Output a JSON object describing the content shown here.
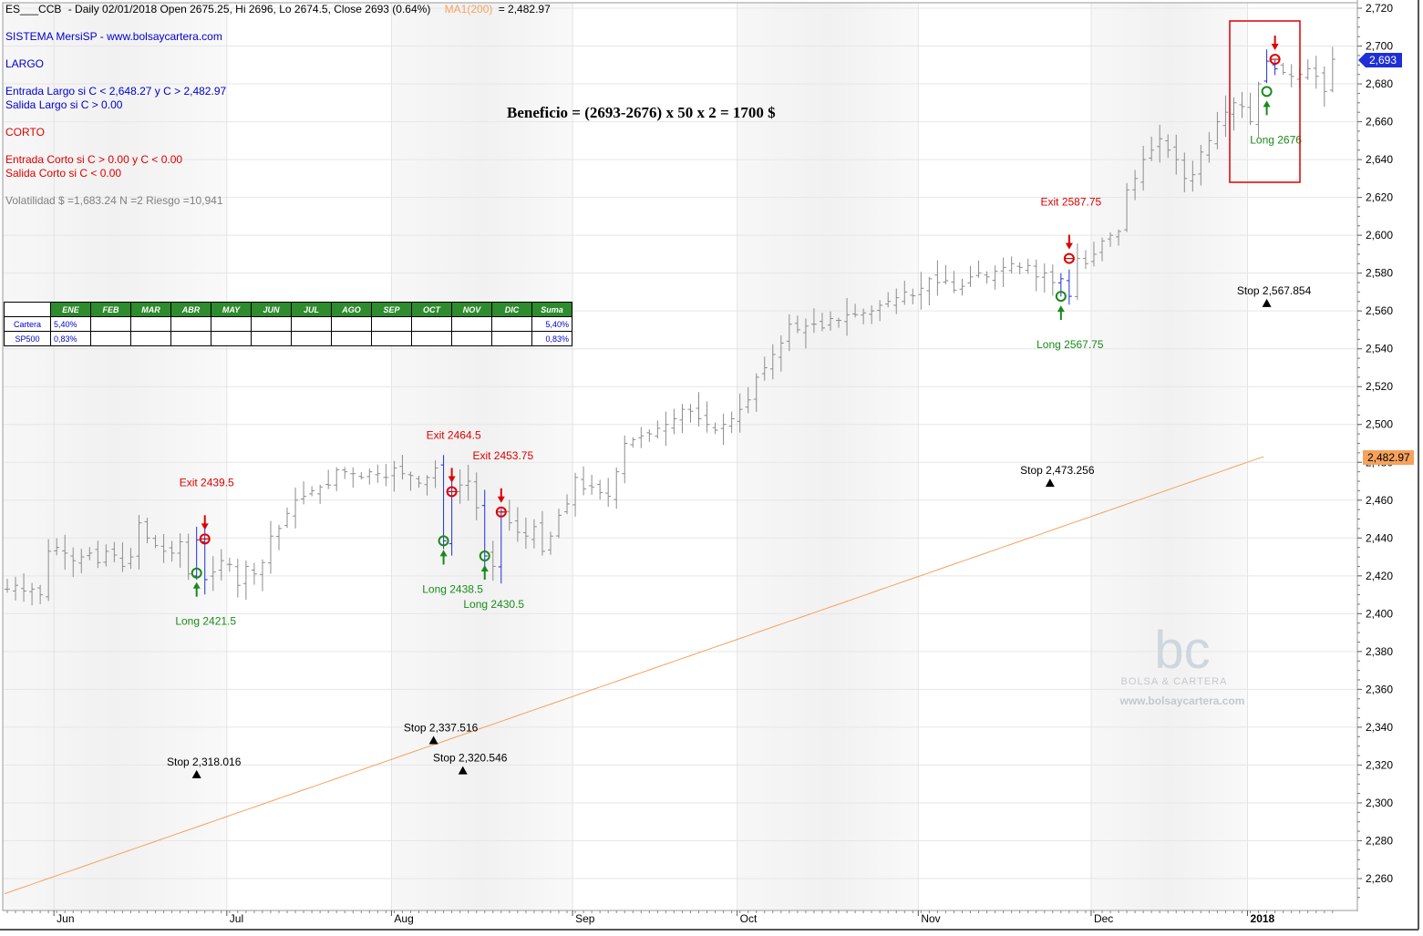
{
  "header": {
    "symbol": "ES___CCB",
    "info": "- Daily 02/01/2018  Open 2675.25,  Hi 2696,  Lo 2674.5,  Close 2693 (0.64%)",
    "ma_label": "MA1(200)",
    "ma_value": "= 2,482.97"
  },
  "system": {
    "name": "SISTEMA MersiSP  -  www.bolsaycartera.com",
    "largo": "LARGO",
    "entrada_largo": "Entrada Largo si C < 2,648.27  y  C > 2,482.97",
    "salida_largo": "Salida Largo si    C > 0.00",
    "corto": "CORTO",
    "entrada_corto": "Entrada Corto si  C > 0.00  y  C < 0.00",
    "salida_corto": "Salida Corto si    C < 0.00",
    "volatilidad": "Volatilidad $ =1,683.24     N =2     Riesgo =10,941"
  },
  "headline": "Beneficio = (2693-2676) x 50 x 2 = 1700 $",
  "table": {
    "headers": [
      "",
      "ENE",
      "FEB",
      "MAR",
      "ABR",
      "MAY",
      "JUN",
      "JUL",
      "AGO",
      "SEP",
      "OCT",
      "NOV",
      "DIC",
      "Suma"
    ],
    "rows": [
      {
        "label": "Cartera",
        "cells": [
          "5,40%",
          "",
          "",
          "",
          "",
          "",
          "",
          "",
          "",
          "",
          "",
          "",
          "5,40%"
        ]
      },
      {
        "label": "SP500",
        "cells": [
          "0,83%",
          "",
          "",
          "",
          "",
          "",
          "",
          "",
          "",
          "",
          "",
          "",
          "0,83%"
        ]
      }
    ]
  },
  "price_tags": {
    "last": "2,693",
    "ma": "2,482.97"
  },
  "watermark": {
    "logo": "bc",
    "name": "BOLSA & CARTERA",
    "url": "www.bolsaycartera.com"
  },
  "colors": {
    "bars": "#8c8c8c",
    "ma": "#f5a25d",
    "long": "#1a8a1a",
    "exit": "#dd0000",
    "info": "#0000cc",
    "last_tag": "#1f2fd6",
    "ma_tag": "#f5a25d",
    "highlight_box": "#dd0000"
  },
  "chart_data": {
    "type": "ohlc-bar",
    "y_range": [
      2245,
      2725
    ],
    "y_ticks": [
      "2,260",
      "2,280",
      "2,300",
      "2,320",
      "2,340",
      "2,360",
      "2,380",
      "2,400",
      "2,420",
      "2,440",
      "2,460",
      "2,480",
      "2,500",
      "2,520",
      "2,540",
      "2,560",
      "2,580",
      "2,600",
      "2,620",
      "2,640",
      "2,660",
      "2,680",
      "2,700",
      "2,720"
    ],
    "x_labels": [
      {
        "label": "Jun",
        "index": 6
      },
      {
        "label": "Jul",
        "index": 27
      },
      {
        "label": "Aug",
        "index": 47
      },
      {
        "label": "Sep",
        "index": 69
      },
      {
        "label": "Oct",
        "index": 89
      },
      {
        "label": "Nov",
        "index": 111
      },
      {
        "label": "Dec",
        "index": 132
      },
      {
        "label": "2018",
        "index": 151
      }
    ],
    "closes": [
      2413,
      2415,
      2412,
      2413,
      2410,
      2433,
      2435,
      2432,
      2428,
      2430,
      2432,
      2427,
      2433,
      2431,
      2425,
      2430,
      2448,
      2440,
      2436,
      2433,
      2432,
      2438,
      2421,
      2439,
      2418,
      2422,
      2428,
      2426,
      2415,
      2425,
      2421,
      2427,
      2441,
      2445,
      2453,
      2460,
      2462,
      2465,
      2467,
      2468,
      2476,
      2475,
      2474,
      2472,
      2475,
      2474,
      2472,
      2477,
      2474,
      2473,
      2469,
      2472,
      2477,
      2438.5,
      2464.5,
      2468,
      2470,
      2456,
      2430.5,
      2425,
      2453.75,
      2448,
      2443,
      2441,
      2446,
      2433,
      2441,
      2452,
      2458,
      2472,
      2466,
      2467,
      2464,
      2462,
      2475,
      2490,
      2492,
      2494,
      2495,
      2498,
      2500,
      2503,
      2508,
      2507,
      2503,
      2500,
      2497,
      2500,
      2503,
      2508,
      2513,
      2525,
      2530,
      2537,
      2543,
      2553,
      2550,
      2552,
      2553,
      2551,
      2556,
      2555,
      2558,
      2558,
      2559,
      2560,
      2563,
      2565,
      2567,
      2570,
      2568,
      2572,
      2577,
      2575,
      2576,
      2571,
      2573,
      2578,
      2580,
      2578,
      2581,
      2583,
      2585,
      2583,
      2584,
      2578,
      2580,
      2575,
      2577,
      2567.75,
      2587.75,
      2585,
      2590,
      2597,
      2600,
      2602,
      2624,
      2630,
      2640,
      2645,
      2651,
      2645,
      2640,
      2630,
      2632,
      2644,
      2650,
      2660,
      2665,
      2670,
      2668,
      2660,
      2680,
      2692,
      2688,
      2686,
      2684,
      2685,
      2688,
      2684,
      2676,
      2693
    ],
    "ma200": {
      "start": 2252,
      "end": 2482.97,
      "points": 155
    },
    "signals": [
      {
        "index": 23,
        "type": "long",
        "price": 2421.5,
        "label": "Long 2421.5"
      },
      {
        "index": 24,
        "type": "exit",
        "price": 2439.5,
        "label": "Exit 2439.5"
      },
      {
        "index": 53,
        "type": "long",
        "price": 2438.5,
        "label": "Long 2438.5"
      },
      {
        "index": 54,
        "type": "exit",
        "price": 2464.5,
        "label": "Exit 2464.5"
      },
      {
        "index": 58,
        "type": "long",
        "price": 2430.5,
        "label": "Long 2430.5"
      },
      {
        "index": 60,
        "type": "exit",
        "price": 2453.75,
        "label": "Exit 2453.75"
      },
      {
        "index": 128,
        "type": "long",
        "price": 2567.75,
        "label": "Long 2567.75"
      },
      {
        "index": 129,
        "type": "exit",
        "price": 2587.75,
        "label": "Exit 2587.75"
      },
      {
        "index": 153,
        "type": "long",
        "price": 2676,
        "label": "Long 2676"
      },
      {
        "index": 154,
        "type": "exit",
        "price": 2693,
        "label": ""
      }
    ],
    "stops": [
      {
        "index": 23,
        "price": 2315,
        "label": "Stop 2,318.016"
      },
      {
        "index": 54,
        "price": 2333,
        "label": "Stop 2,337.516"
      },
      {
        "index": 58,
        "price": 2317,
        "label": "Stop 2,320.546"
      },
      {
        "index": 128,
        "price": 2469,
        "label": "Stop 2,473.256"
      },
      {
        "index": 153,
        "price": 2564,
        "label": "Stop 2,567.854"
      }
    ]
  }
}
